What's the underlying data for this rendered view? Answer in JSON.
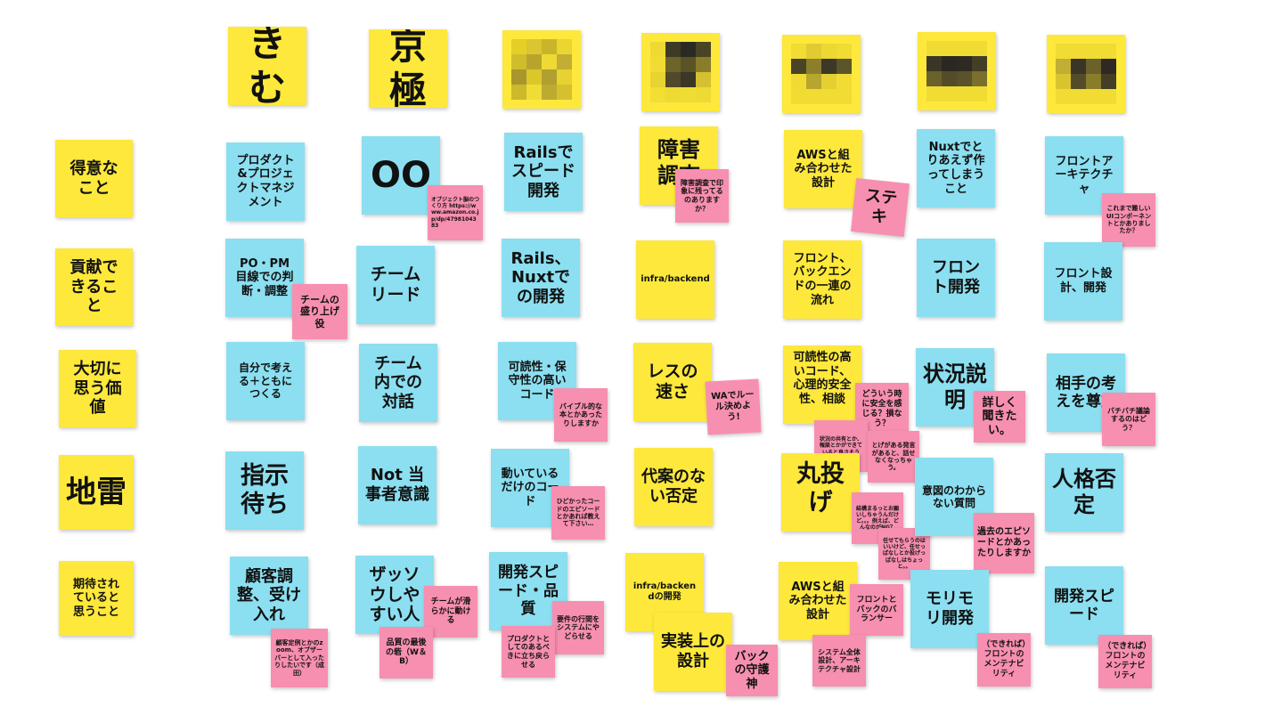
{
  "colors": {
    "yellow": "#fde83b",
    "blue": "#8bdff0",
    "pink": "#f78fb0",
    "background": "#ffffff"
  },
  "headers": {
    "kimu": "きむ",
    "kyogoku": "京極"
  },
  "row_labels": {
    "strengths": "得意なこと",
    "contributions": "貢献できること",
    "values": "大切に思う価値",
    "landmines": "地雷",
    "expectations": "期待されていると思うこと"
  },
  "notes": {
    "c1_r1": "プロダクト&プロジェクトマネジメント",
    "c1_r2": "PO・PM目線での判断・調整",
    "c1_r2_sub": "チームの盛り上げ役",
    "c1_r3": "自分で考える＋ともにつくる",
    "c1_r4": "指示待ち",
    "c1_r5": "顧客調整、受け入れ",
    "c1_r5_sub": "顧客定例とかのzoom、オブザーバーとして入ったりしたいです（成田）",
    "c2_r1": "OO",
    "c2_r1_sub": "オブジェクト脳のつくり方 https://www.amazon.co.jp/dp/4798104383",
    "c2_r2": "チームリード",
    "c2_r3": "チーム内での対話",
    "c2_r4": "Not 当事者意識",
    "c2_r5": "ザッソウしやすい人",
    "c2_r5_sub1": "チームが滑らかに動ける",
    "c2_r5_sub2": "品質の最後の砦（W＆B）",
    "c3_r1": "Railsでスピード開発",
    "c3_r2": "Rails、Nuxtでの開発",
    "c3_r3": "可読性・保守性の高いコード",
    "c3_r3_sub": "バイブル的な本とかあったりしますか",
    "c3_r4": "動いているだけのコード",
    "c3_r4_sub": "ひどかったコードのエピソードとかあれば教えて下さい…",
    "c3_r5": "開発スピード・品質",
    "c3_r5_sub1": "要件の行間をシステムにやどらせる",
    "c3_r5_sub2": "プロダクトとしてのあるべきに立ち戻らせる",
    "c4_r1": "障害調査",
    "c4_r1_sub": "障害調査で印象に残ってるのありますか？",
    "c4_r2": "infra/backend",
    "c4_r3": "レスの速さ",
    "c4_r3_sub": "WAでルール決めよう!",
    "c4_r4": "代案のない否定",
    "c4_r5": "infra/backendの開発",
    "c4_r5_sub1": "実装上の設計",
    "c4_r5_sub2": "バックの守護神",
    "c5_r1": "AWSと組み合わせた設計",
    "c5_r1_sub": "ステキ",
    "c5_r2": "フロント、バックエンドの一連の流れ",
    "c5_r3": "可読性の高いコード、心理的安全性、相談",
    "c5_r3_sub1": "どういう時に安全を感じる？損なう？",
    "c5_r3_sub2": "状況の共有とか、報談とかができていると良さそう",
    "c5_r3_sub3": "とげがある発言があると、話せなくなっちゃう。",
    "c5_r4": "丸投げ",
    "c5_r4_sub1": "結構まるっとお願いしちゃうんだけど。。。例えば、どんなのがNG？",
    "c5_r4_sub2": "任せてもらうのはいいけど、任せっぱなしとか投げっぱなしはちょっと。。",
    "c5_r5": "AWSと組み合わせた設計",
    "c5_r5_sub1": "フロントとバックのバランサー",
    "c5_r5_sub2": "システム全体設計、アーキテクチャ設計",
    "c6_r1": "Nuxtでとりあえず作ってしまうこと",
    "c6_r2": "フロント開発",
    "c6_r3": "状況説明",
    "c6_r3_sub": "詳しく聞きたい。",
    "c6_r4": "意図のわからない質問",
    "c6_r4_sub": "過去のエピソードとかあったりしますか",
    "c6_r5": "モリモリ開発",
    "c6_r5_sub": "（できれば）フロントのメンテナビリティ",
    "c7_r1": "フロントアーキテクチャ",
    "c7_r1_sub": "これまで難しいUIコンポーネントとかありましたか？",
    "c7_r2": "フロント設計、開発",
    "c7_r3": "相手の考えを尊重",
    "c7_r3_sub": "バチバチ議論するのはどう？",
    "c7_r4": "人格否定",
    "c7_r5": "開発スピード",
    "c7_r5_sub": "（できれば）フロントのメンテナビリティ"
  },
  "pixel_palettes": {
    "h3": [
      "#e4cf25",
      "#d9c630",
      "#c9b52a",
      "#ead531",
      "#d1bd2c",
      "#b8a42d",
      "#efd934",
      "#c2ae33",
      "#a8962d",
      "#dcc72b",
      "#b19f2f",
      "#e7d232",
      "#cdb92a",
      "#f0dc36",
      "#bdaa31",
      "#d5c12e"
    ],
    "h4": [
      "#efda33",
      "#3e3a26",
      "#2b2a22",
      "#4a4426",
      "#f1dc33",
      "#6e6429",
      "#5a5327",
      "#8a7d2a",
      "#e8d331",
      "#51492a",
      "#3b3626",
      "#d4c030",
      "#f3de34",
      "#efda33",
      "#f1dc33",
      "#efda33"
    ],
    "h5": [
      "#f1dc33",
      "#e0cb30",
      "#ecd733",
      "#f1dc33",
      "#4a4426",
      "#8c7f2c",
      "#3c3727",
      "#5d552a",
      "#f0db33",
      "#b8a52e",
      "#e5d032",
      "#f1dc33",
      "#f1dc33",
      "#f1dc33",
      "#f1dc33",
      "#f1dc33"
    ],
    "h6": [
      "#f1dc33",
      "#f1dc33",
      "#f1dc33",
      "#f1dc33",
      "#3a3526",
      "#2b2822",
      "#2e2a23",
      "#443e26",
      "#6a612b",
      "#544c29",
      "#5a522a",
      "#7a6f2c",
      "#f1dc33",
      "#f1dc33",
      "#f1dc33",
      "#f1dc33"
    ],
    "h7": [
      "#f1dc33",
      "#f1dc33",
      "#f1dc33",
      "#f1dc33",
      "#c2ae33",
      "#3a3526",
      "#6a612b",
      "#2e2a23",
      "#d9c430",
      "#544c29",
      "#8a7d2a",
      "#443e26",
      "#f1dc33",
      "#f1dc33",
      "#f1dc33",
      "#f1dc33"
    ]
  }
}
